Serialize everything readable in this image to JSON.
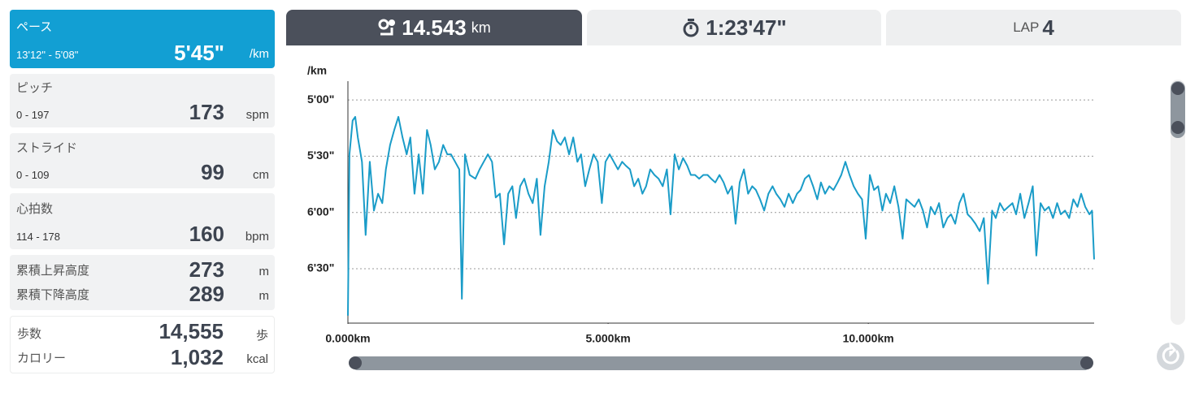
{
  "sidebar": [
    {
      "label": "ペース",
      "range": "13'12\" - 5'08\"",
      "value": "5'45\"",
      "unit": "/km"
    },
    {
      "label": "ピッチ",
      "range": "0 - 197",
      "value": "173",
      "unit": "spm"
    },
    {
      "label": "ストライド",
      "range": "0 - 109",
      "value": "99",
      "unit": "cm"
    },
    {
      "label": "心拍数",
      "range": "114 - 178",
      "value": "160",
      "unit": "bpm"
    },
    {
      "rows": [
        {
          "label": "累積上昇高度",
          "value": "273",
          "unit": "m"
        },
        {
          "label": "累積下降高度",
          "value": "289",
          "unit": "m"
        }
      ]
    },
    {
      "rows": [
        {
          "label": "歩数",
          "value": "14,555",
          "unit": "歩"
        },
        {
          "label": "カロリー",
          "value": "1,032",
          "unit": "kcal"
        }
      ]
    }
  ],
  "tabs": [
    {
      "value": "14.543",
      "unit": "km"
    },
    {
      "value": "1:23'47\""
    },
    {
      "label": "LAP",
      "value": "4"
    }
  ],
  "chart_data": {
    "type": "line",
    "y_label": "/km",
    "color": "#1a9cc8",
    "x": [
      0,
      0.03,
      0.09,
      0.14,
      0.19,
      0.27,
      0.34,
      0.42,
      0.5,
      0.58,
      0.66,
      0.73,
      0.81,
      0.89,
      0.97,
      1.05,
      1.13,
      1.2,
      1.28,
      1.36,
      1.44,
      1.52,
      1.59,
      1.67,
      1.75,
      1.83,
      1.91,
      1.98,
      2.06,
      2.14,
      2.19,
      2.25,
      2.34,
      2.45,
      2.53,
      2.61,
      2.69,
      2.77,
      2.84,
      2.92,
      3.0,
      3.08,
      3.16,
      3.23,
      3.31,
      3.39,
      3.47,
      3.55,
      3.63,
      3.7,
      3.78,
      3.86,
      3.94,
      4.02,
      4.09,
      4.17,
      4.25,
      4.33,
      4.41,
      4.48,
      4.56,
      4.64,
      4.72,
      4.8,
      4.88,
      4.95,
      5.03,
      5.11,
      5.19,
      5.27,
      5.34,
      5.42,
      5.5,
      5.58,
      5.66,
      5.73,
      5.81,
      5.89,
      5.97,
      6.05,
      6.13,
      6.2,
      6.28,
      6.36,
      6.44,
      6.52,
      6.59,
      6.67,
      6.75,
      6.83,
      6.91,
      6.98,
      7.06,
      7.14,
      7.22,
      7.3,
      7.38,
      7.45,
      7.53,
      7.61,
      7.69,
      7.77,
      7.84,
      7.92,
      8.0,
      8.08,
      8.16,
      8.23,
      8.31,
      8.39,
      8.47,
      8.55,
      8.63,
      8.7,
      8.78,
      8.86,
      8.94,
      9.02,
      9.09,
      9.17,
      9.25,
      9.33,
      9.41,
      9.48,
      9.56,
      9.64,
      9.72,
      9.8,
      9.88,
      9.95,
      10.03,
      10.11,
      10.19,
      10.27,
      10.34,
      10.42,
      10.5,
      10.58,
      10.66,
      10.73,
      10.81,
      10.89,
      10.97,
      11.05,
      11.13,
      11.2,
      11.28,
      11.36,
      11.44,
      11.52,
      11.59,
      11.67,
      11.75,
      11.83,
      11.91,
      11.98,
      12.06,
      12.14,
      12.22,
      12.3,
      12.38,
      12.45,
      12.53,
      12.61,
      12.69,
      12.77,
      12.84,
      12.92,
      13.0,
      13.08,
      13.16,
      13.23,
      13.31,
      13.39,
      13.47,
      13.55,
      13.63,
      13.7,
      13.78,
      13.86,
      13.94,
      14.02,
      14.09,
      14.17,
      14.25,
      14.3,
      14.34
    ],
    "values": [
      415,
      329,
      311,
      309,
      320,
      333,
      372,
      333,
      359,
      350,
      355,
      337,
      324,
      316,
      309,
      320,
      329,
      320,
      350,
      329,
      350,
      316,
      324,
      337,
      333,
      324,
      329,
      329,
      333,
      337,
      406,
      329,
      340,
      342,
      337,
      333,
      329,
      333,
      352,
      350,
      377,
      350,
      346,
      363,
      346,
      342,
      350,
      355,
      342,
      372,
      346,
      333,
      316,
      322,
      324,
      320,
      329,
      320,
      333,
      329,
      346,
      337,
      329,
      333,
      355,
      333,
      329,
      333,
      337,
      333,
      335,
      337,
      346,
      342,
      350,
      346,
      337,
      340,
      342,
      346,
      337,
      361,
      329,
      337,
      331,
      335,
      340,
      340,
      342,
      340,
      340,
      342,
      344,
      340,
      344,
      350,
      346,
      366,
      344,
      337,
      350,
      346,
      348,
      353,
      359,
      350,
      346,
      350,
      353,
      357,
      350,
      355,
      350,
      348,
      342,
      340,
      346,
      353,
      344,
      350,
      346,
      348,
      344,
      340,
      333,
      340,
      346,
      350,
      353,
      374,
      340,
      348,
      346,
      359,
      350,
      355,
      346,
      357,
      374,
      353,
      355,
      357,
      353,
      359,
      368,
      357,
      361,
      355,
      368,
      363,
      361,
      366,
      355,
      350,
      361,
      363,
      366,
      370,
      363,
      398,
      359,
      363,
      355,
      359,
      357,
      355,
      361,
      350,
      363,
      355,
      346,
      383,
      355,
      359,
      357,
      363,
      355,
      361,
      359,
      363,
      353,
      357,
      350,
      357,
      361,
      359,
      385
    ],
    "xlim": [
      0,
      14.34
    ],
    "xticks": [
      {
        "value": 0,
        "label": "0.000km"
      },
      {
        "value": 5,
        "label": "5.000km"
      },
      {
        "value": 10,
        "label": "10.000km"
      }
    ],
    "ylim": [
      419,
      290
    ],
    "yticks": [
      {
        "value": 300,
        "label": "5'00\""
      },
      {
        "value": 330,
        "label": "5'30\""
      },
      {
        "value": 360,
        "label": "6'00\""
      },
      {
        "value": 390,
        "label": "6'30\""
      }
    ],
    "grid": true
  }
}
